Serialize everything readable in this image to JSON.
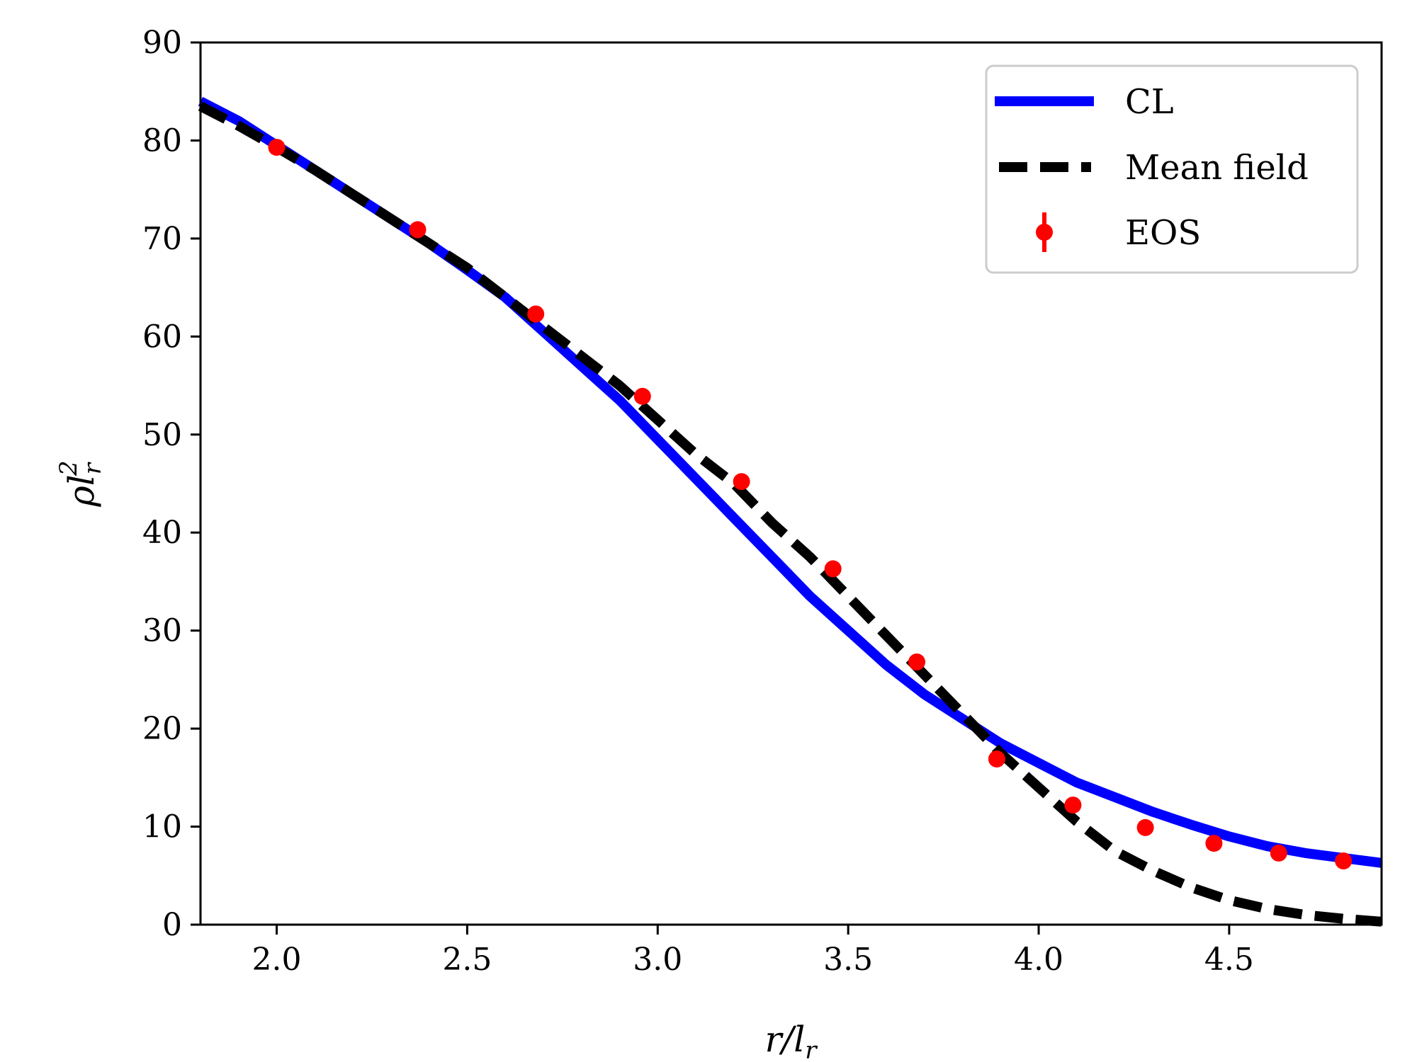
{
  "chart_data": {
    "type": "line",
    "xlabel": "r/l_r",
    "ylabel": "ρl_r^2",
    "xlim": [
      1.8,
      4.9
    ],
    "ylim": [
      0,
      90
    ],
    "x_ticks": [
      "2.0",
      "2.5",
      "3.0",
      "3.5",
      "4.0",
      "4.5"
    ],
    "y_ticks": [
      "0",
      "10",
      "20",
      "30",
      "40",
      "50",
      "60",
      "70",
      "80",
      "90"
    ],
    "grid": false,
    "legend_position": "top-right",
    "series": [
      {
        "name": "CL",
        "style": "solid",
        "color": "#0000ff",
        "x": [
          1.8,
          1.9,
          2.0,
          2.1,
          2.2,
          2.3,
          2.4,
          2.5,
          2.6,
          2.7,
          2.8,
          2.9,
          3.0,
          3.1,
          3.2,
          3.3,
          3.4,
          3.5,
          3.6,
          3.7,
          3.8,
          3.9,
          4.0,
          4.1,
          4.2,
          4.3,
          4.4,
          4.5,
          4.6,
          4.7,
          4.8,
          4.9
        ],
        "y": [
          84.0,
          82.0,
          79.5,
          77.0,
          74.5,
          72.0,
          69.5,
          66.8,
          64.0,
          60.5,
          57.0,
          53.5,
          49.5,
          45.5,
          41.5,
          37.5,
          33.5,
          30.0,
          26.5,
          23.5,
          21.0,
          18.5,
          16.5,
          14.5,
          13.0,
          11.5,
          10.2,
          9.0,
          8.0,
          7.3,
          6.8,
          6.3
        ]
      },
      {
        "name": "Mean field",
        "style": "dashed",
        "color": "#000000",
        "x": [
          1.8,
          1.9,
          2.0,
          2.1,
          2.2,
          2.3,
          2.4,
          2.5,
          2.6,
          2.7,
          2.8,
          2.9,
          3.0,
          3.1,
          3.2,
          3.3,
          3.4,
          3.5,
          3.6,
          3.7,
          3.8,
          3.9,
          4.0,
          4.1,
          4.2,
          4.3,
          4.4,
          4.5,
          4.6,
          4.7,
          4.8,
          4.9
        ],
        "y": [
          83.5,
          81.5,
          79.3,
          77.0,
          74.5,
          72.0,
          69.5,
          67.0,
          64.0,
          61.0,
          58.0,
          55.0,
          51.5,
          48.0,
          45.0,
          41.0,
          37.5,
          33.5,
          29.5,
          25.5,
          21.5,
          17.5,
          14.0,
          10.5,
          7.5,
          5.5,
          3.8,
          2.5,
          1.6,
          1.0,
          0.6,
          0.3
        ]
      },
      {
        "name": "EOS",
        "style": "markers",
        "color": "#ff0000",
        "x": [
          2.0,
          2.37,
          2.68,
          2.96,
          3.22,
          3.46,
          3.68,
          3.89,
          4.09,
          4.28,
          4.46,
          4.63,
          4.8
        ],
        "y": [
          79.3,
          70.9,
          62.3,
          53.9,
          45.2,
          36.3,
          26.8,
          16.9,
          12.2,
          9.9,
          8.3,
          7.3,
          6.5
        ]
      }
    ]
  }
}
